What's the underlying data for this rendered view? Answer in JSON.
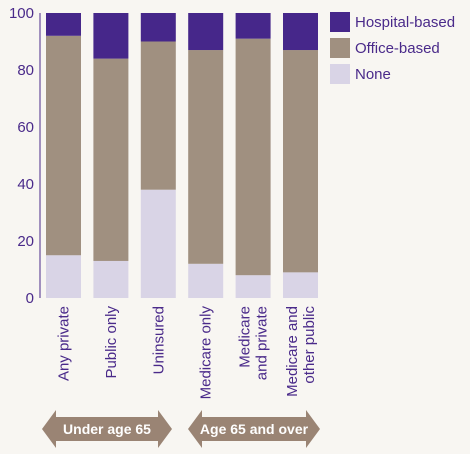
{
  "chart_data": {
    "type": "bar",
    "stacked": true,
    "title": "",
    "xlabel": "",
    "ylabel": "",
    "ylim": [
      0,
      100
    ],
    "yticks": [
      0,
      20,
      40,
      60,
      80,
      100
    ],
    "grid": false,
    "legend_position": "top-right",
    "categories": [
      "Any private",
      "Public only",
      "Uninsured",
      "Medicare only",
      "Medicare and private",
      "Medicare and other public"
    ],
    "category_lines": [
      [
        "Any private"
      ],
      [
        "Public only"
      ],
      [
        "Uninsured"
      ],
      [
        "Medicare only"
      ],
      [
        "Medicare",
        "and private"
      ],
      [
        "Medicare and",
        "other public"
      ]
    ],
    "series": [
      {
        "name": "None",
        "color": "#d9d4e6",
        "values": [
          15,
          13,
          38,
          12,
          8,
          9
        ]
      },
      {
        "name": "Office-based",
        "color": "#a09080",
        "values": [
          77,
          71,
          52,
          75,
          83,
          78
        ]
      },
      {
        "name": "Hospital-based",
        "color": "#46278a",
        "values": [
          8,
          16,
          10,
          13,
          9,
          13
        ]
      }
    ],
    "legend_order": [
      "Hospital-based",
      "Office-based",
      "None"
    ],
    "groups": [
      {
        "label": "Under age 65",
        "categories": [
          "Any private",
          "Public only",
          "Uninsured"
        ]
      },
      {
        "label": "Age 65 and over",
        "categories": [
          "Medicare only",
          "Medicare and private",
          "Medicare and other public"
        ]
      }
    ],
    "group_arrow_color": "#9a8474"
  }
}
